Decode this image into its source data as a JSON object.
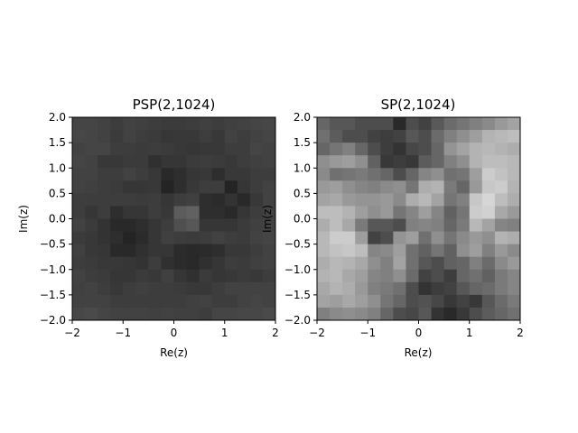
{
  "chart_data": [
    {
      "type": "heatmap",
      "title": "PSP(2,1024)",
      "xlabel": "Re(z)",
      "ylabel": "Im(z)",
      "xlim": [
        -2,
        2
      ],
      "ylim": [
        -2,
        2
      ],
      "xticks": [
        -2,
        -1,
        0,
        1,
        2
      ],
      "xtick_labels": [
        "−2",
        "−1",
        "0",
        "1",
        "2"
      ],
      "yticks": [
        -2.0,
        -1.5,
        -1.0,
        -0.5,
        0.0,
        0.5,
        1.0,
        1.5,
        2.0
      ],
      "ytick_labels": [
        "−2.0",
        "−1.5",
        "−1.0",
        "−0.5",
        "0.0",
        "0.5",
        "1.0",
        "1.5",
        "2.0"
      ],
      "colormap": "gray",
      "grid": false,
      "rows_top_to_bottom": [
        [
          0.27,
          0.27,
          0.26,
          0.24,
          0.26,
          0.25,
          0.24,
          0.23,
          0.23,
          0.24,
          0.25,
          0.24,
          0.25,
          0.26,
          0.27,
          0.28
        ],
        [
          0.28,
          0.27,
          0.26,
          0.23,
          0.26,
          0.24,
          0.23,
          0.21,
          0.22,
          0.22,
          0.24,
          0.22,
          0.26,
          0.24,
          0.26,
          0.27
        ],
        [
          0.26,
          0.27,
          0.27,
          0.24,
          0.24,
          0.23,
          0.24,
          0.23,
          0.22,
          0.21,
          0.22,
          0.22,
          0.24,
          0.24,
          0.27,
          0.26
        ],
        [
          0.27,
          0.26,
          0.22,
          0.22,
          0.23,
          0.23,
          0.19,
          0.21,
          0.21,
          0.23,
          0.24,
          0.23,
          0.22,
          0.24,
          0.25,
          0.26
        ],
        [
          0.26,
          0.26,
          0.24,
          0.24,
          0.26,
          0.24,
          0.22,
          0.16,
          0.18,
          0.21,
          0.22,
          0.18,
          0.22,
          0.22,
          0.24,
          0.24
        ],
        [
          0.26,
          0.25,
          0.24,
          0.23,
          0.21,
          0.21,
          0.22,
          0.14,
          0.18,
          0.22,
          0.24,
          0.24,
          0.14,
          0.21,
          0.24,
          0.26
        ],
        [
          0.24,
          0.24,
          0.24,
          0.24,
          0.24,
          0.23,
          0.24,
          0.21,
          0.24,
          0.25,
          0.18,
          0.17,
          0.2,
          0.16,
          0.22,
          0.26
        ],
        [
          0.24,
          0.21,
          0.24,
          0.18,
          0.21,
          0.21,
          0.24,
          0.22,
          0.36,
          0.38,
          0.18,
          0.18,
          0.16,
          0.21,
          0.24,
          0.26
        ],
        [
          0.26,
          0.23,
          0.2,
          0.16,
          0.16,
          0.18,
          0.21,
          0.24,
          0.31,
          0.34,
          0.21,
          0.21,
          0.21,
          0.23,
          0.25,
          0.26
        ],
        [
          0.23,
          0.22,
          0.2,
          0.18,
          0.14,
          0.17,
          0.21,
          0.25,
          0.24,
          0.23,
          0.24,
          0.26,
          0.24,
          0.23,
          0.26,
          0.27
        ],
        [
          0.25,
          0.22,
          0.21,
          0.16,
          0.16,
          0.19,
          0.21,
          0.21,
          0.17,
          0.16,
          0.17,
          0.18,
          0.22,
          0.22,
          0.24,
          0.26
        ],
        [
          0.24,
          0.23,
          0.22,
          0.22,
          0.21,
          0.2,
          0.24,
          0.19,
          0.17,
          0.16,
          0.19,
          0.21,
          0.24,
          0.23,
          0.25,
          0.26
        ],
        [
          0.26,
          0.24,
          0.23,
          0.21,
          0.21,
          0.23,
          0.22,
          0.25,
          0.21,
          0.19,
          0.23,
          0.21,
          0.22,
          0.23,
          0.22,
          0.24
        ],
        [
          0.25,
          0.26,
          0.24,
          0.22,
          0.24,
          0.25,
          0.24,
          0.24,
          0.23,
          0.22,
          0.22,
          0.24,
          0.26,
          0.26,
          0.26,
          0.26
        ],
        [
          0.26,
          0.26,
          0.26,
          0.24,
          0.24,
          0.24,
          0.24,
          0.24,
          0.24,
          0.25,
          0.26,
          0.24,
          0.24,
          0.26,
          0.27,
          0.26
        ],
        [
          0.28,
          0.29,
          0.27,
          0.26,
          0.26,
          0.26,
          0.25,
          0.26,
          0.25,
          0.25,
          0.24,
          0.27,
          0.27,
          0.28,
          0.28,
          0.29
        ]
      ]
    },
    {
      "type": "heatmap",
      "title": "SP(2,1024)",
      "xlabel": "Re(z)",
      "ylabel": "Im(z)",
      "xlim": [
        -2,
        2
      ],
      "ylim": [
        -2,
        2
      ],
      "xticks": [
        -2,
        -1,
        0,
        1,
        2
      ],
      "xtick_labels": [
        "−2",
        "−1",
        "0",
        "1",
        "2"
      ],
      "yticks": [
        -2.0,
        -1.5,
        -1.0,
        -0.5,
        0.0,
        0.5,
        1.0,
        1.5,
        2.0
      ],
      "ytick_labels": [
        "−2.0",
        "−1.5",
        "−1.0",
        "−0.5",
        "0.0",
        "0.5",
        "1.0",
        "1.5",
        "2.0"
      ],
      "colormap": "gray",
      "grid": false,
      "rows_top_to_bottom": [
        [
          0.4,
          0.34,
          0.34,
          0.3,
          0.3,
          0.3,
          0.16,
          0.3,
          0.26,
          0.35,
          0.42,
          0.46,
          0.5,
          0.54,
          0.6,
          0.64
        ],
        [
          0.44,
          0.36,
          0.3,
          0.3,
          0.26,
          0.24,
          0.26,
          0.34,
          0.3,
          0.42,
          0.5,
          0.56,
          0.62,
          0.7,
          0.72,
          0.74
        ],
        [
          0.4,
          0.46,
          0.5,
          0.4,
          0.3,
          0.24,
          0.2,
          0.28,
          0.3,
          0.4,
          0.58,
          0.64,
          0.7,
          0.72,
          0.7,
          0.68
        ],
        [
          0.56,
          0.6,
          0.62,
          0.56,
          0.38,
          0.22,
          0.24,
          0.22,
          0.36,
          0.4,
          0.5,
          0.56,
          0.7,
          0.74,
          0.74,
          0.72
        ],
        [
          0.54,
          0.44,
          0.46,
          0.48,
          0.44,
          0.4,
          0.3,
          0.4,
          0.52,
          0.56,
          0.44,
          0.46,
          0.62,
          0.8,
          0.76,
          0.72
        ],
        [
          0.6,
          0.62,
          0.56,
          0.52,
          0.5,
          0.54,
          0.56,
          0.46,
          0.68,
          0.7,
          0.48,
          0.4,
          0.6,
          0.78,
          0.8,
          0.7
        ],
        [
          0.64,
          0.66,
          0.6,
          0.58,
          0.58,
          0.6,
          0.54,
          0.68,
          0.72,
          0.64,
          0.46,
          0.5,
          0.78,
          0.84,
          0.74,
          0.68
        ],
        [
          0.74,
          0.74,
          0.7,
          0.62,
          0.56,
          0.6,
          0.46,
          0.52,
          0.62,
          0.52,
          0.38,
          0.46,
          0.8,
          0.82,
          0.66,
          0.6
        ],
        [
          0.68,
          0.74,
          0.66,
          0.48,
          0.34,
          0.34,
          0.3,
          0.5,
          0.52,
          0.5,
          0.4,
          0.48,
          0.72,
          0.64,
          0.52,
          0.5
        ],
        [
          0.72,
          0.8,
          0.8,
          0.62,
          0.26,
          0.3,
          0.58,
          0.62,
          0.44,
          0.56,
          0.46,
          0.54,
          0.6,
          0.56,
          0.7,
          0.68
        ],
        [
          0.72,
          0.76,
          0.78,
          0.74,
          0.52,
          0.54,
          0.62,
          0.44,
          0.38,
          0.46,
          0.38,
          0.56,
          0.62,
          0.5,
          0.6,
          0.54
        ],
        [
          0.68,
          0.72,
          0.7,
          0.66,
          0.56,
          0.5,
          0.64,
          0.44,
          0.34,
          0.3,
          0.38,
          0.4,
          0.5,
          0.42,
          0.54,
          0.6
        ],
        [
          0.7,
          0.72,
          0.66,
          0.62,
          0.52,
          0.5,
          0.56,
          0.42,
          0.26,
          0.3,
          0.24,
          0.4,
          0.44,
          0.38,
          0.48,
          0.52
        ],
        [
          0.66,
          0.7,
          0.68,
          0.6,
          0.5,
          0.48,
          0.44,
          0.3,
          0.2,
          0.24,
          0.26,
          0.34,
          0.4,
          0.42,
          0.48,
          0.52
        ],
        [
          0.64,
          0.62,
          0.66,
          0.62,
          0.56,
          0.46,
          0.4,
          0.3,
          0.32,
          0.28,
          0.22,
          0.26,
          0.22,
          0.34,
          0.42,
          0.48
        ],
        [
          0.5,
          0.54,
          0.56,
          0.54,
          0.5,
          0.4,
          0.3,
          0.28,
          0.34,
          0.2,
          0.16,
          0.22,
          0.3,
          0.36,
          0.4,
          0.44
        ]
      ]
    }
  ]
}
